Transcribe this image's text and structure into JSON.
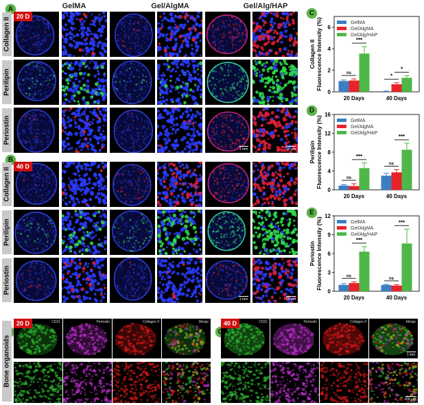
{
  "panel_letters": [
    "A",
    "B",
    "C",
    "D",
    "E",
    "F",
    "G"
  ],
  "column_headers": [
    "GelMA",
    "Gel/AlgMA",
    "Gel/Alg/HAP"
  ],
  "row_labels": [
    "Collagen II",
    "Perilipin",
    "Periostin"
  ],
  "timepoints": [
    "20 D",
    "40 D"
  ],
  "scale_bars": {
    "whole": "1 mm",
    "zoom": "50 μm",
    "organoid_whole": "1 mm",
    "organoid_zoom": "200 μm"
  },
  "organoid": {
    "row_label": "Bone organoids",
    "channels": [
      "CD31",
      "Periostin",
      "Collagen II",
      "Merge"
    ]
  },
  "colors": {
    "GelMA": "#3a7fc1",
    "Gel/AlgMA": "#e8232a",
    "Gel/Alg/HAP": "#4db748",
    "panel_letter": "#5cb646",
    "badge": "#d01010"
  },
  "chart_data": [
    {
      "type": "bar",
      "panel": "C",
      "ylabel": [
        "Collagen II",
        "Fluorescence Intensity (%)"
      ],
      "categories": [
        "20 Days",
        "40 Days"
      ],
      "ylim": [
        0,
        7
      ],
      "yticks": [
        0,
        2,
        4,
        6
      ],
      "legend": "top-left",
      "series": [
        {
          "name": "GelMA",
          "values": [
            1.0,
            0.05
          ],
          "errors": [
            0.1,
            0.02
          ]
        },
        {
          "name": "Gel/AlgMA",
          "values": [
            1.05,
            0.7
          ],
          "errors": [
            0.15,
            0.15
          ]
        },
        {
          "name": "Gel/Alg/HAP",
          "values": [
            3.55,
            1.3
          ],
          "errors": [
            0.65,
            0.2
          ]
        }
      ],
      "significance": [
        {
          "category": "20 Days",
          "pair": [
            0,
            1
          ],
          "label": "ns"
        },
        {
          "category": "20 Days",
          "pair": [
            1,
            2
          ],
          "label": "***"
        },
        {
          "category": "40 Days",
          "pair": [
            0,
            1
          ],
          "label": "*"
        },
        {
          "category": "40 Days",
          "pair": [
            1,
            2
          ],
          "label": "*"
        }
      ]
    },
    {
      "type": "bar",
      "panel": "D",
      "ylabel": [
        "Perilipin",
        "Fluorescence Intensity (%)"
      ],
      "categories": [
        "20 Days",
        "40 Days"
      ],
      "ylim": [
        0,
        16
      ],
      "yticks": [
        0,
        4,
        8,
        12,
        16
      ],
      "legend": "top-left",
      "series": [
        {
          "name": "GelMA",
          "values": [
            0.9,
            3.0
          ],
          "errors": [
            0.2,
            0.5
          ]
        },
        {
          "name": "Gel/AlgMA",
          "values": [
            0.8,
            3.7
          ],
          "errors": [
            0.5,
            0.6
          ]
        },
        {
          "name": "Gel/Alg/HAP",
          "values": [
            4.6,
            8.5
          ],
          "errors": [
            1.1,
            1.4
          ]
        }
      ],
      "significance": [
        {
          "category": "20 Days",
          "pair": [
            0,
            1
          ],
          "label": "ns"
        },
        {
          "category": "20 Days",
          "pair": [
            1,
            2
          ],
          "label": "***"
        },
        {
          "category": "40 Days",
          "pair": [
            0,
            1
          ],
          "label": "ns"
        },
        {
          "category": "40 Days",
          "pair": [
            1,
            2
          ],
          "label": "***"
        }
      ]
    },
    {
      "type": "bar",
      "panel": "E",
      "ylabel": [
        "Periostin",
        "Fluorescence Intensity (%)"
      ],
      "categories": [
        "20 Days",
        "40 Days"
      ],
      "ylim": [
        0,
        12
      ],
      "yticks": [
        0,
        3,
        6,
        9,
        12
      ],
      "legend": "top-left",
      "series": [
        {
          "name": "GelMA",
          "values": [
            1.0,
            1.0
          ],
          "errors": [
            0.2,
            0.1
          ]
        },
        {
          "name": "Gel/AlgMA",
          "values": [
            1.3,
            0.9
          ],
          "errors": [
            0.2,
            0.15
          ]
        },
        {
          "name": "Gel/Alg/HAP",
          "values": [
            6.3,
            7.6
          ],
          "errors": [
            0.8,
            2.3
          ]
        }
      ],
      "significance": [
        {
          "category": "20 Days",
          "pair": [
            0,
            1
          ],
          "label": "ns"
        },
        {
          "category": "20 Days",
          "pair": [
            1,
            2
          ],
          "label": "***"
        },
        {
          "category": "40 Days",
          "pair": [
            0,
            1
          ],
          "label": "ns"
        },
        {
          "category": "40 Days",
          "pair": [
            1,
            2
          ],
          "label": "***"
        }
      ]
    }
  ]
}
